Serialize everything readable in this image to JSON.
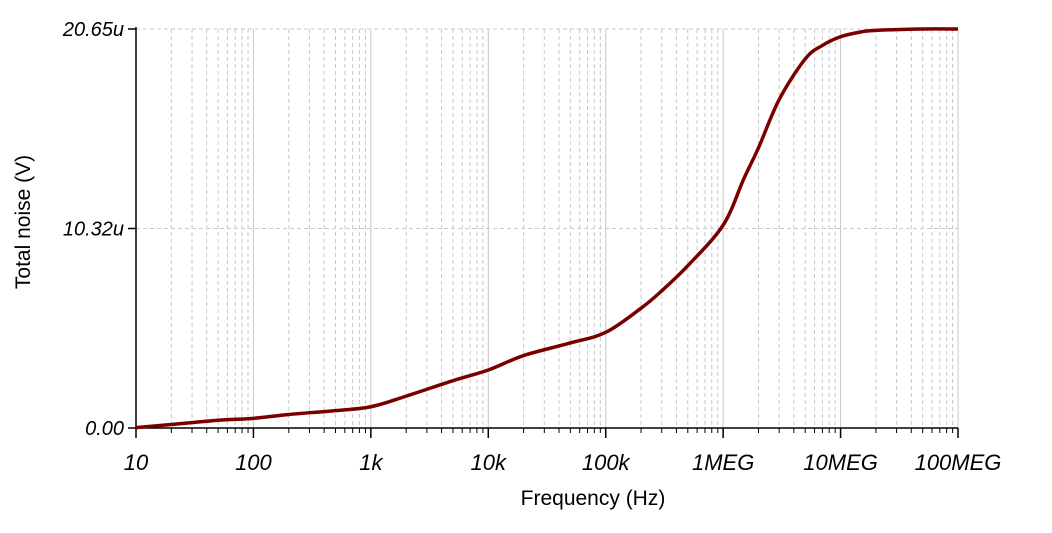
{
  "chart_data": {
    "type": "line",
    "title": "",
    "xlabel": "Frequency (Hz)",
    "ylabel": "Total noise (V)",
    "x_scale": "log",
    "xlim": [
      10,
      100000000
    ],
    "ylim": [
      0,
      20.65
    ],
    "y_unit": "uV",
    "grid": true,
    "x_tick_labels": [
      "10",
      "100",
      "1k",
      "10k",
      "100k",
      "1MEG",
      "10MEG",
      "100MEG"
    ],
    "y_tick_labels": [
      "0.00",
      "10.32u",
      "20.65u"
    ],
    "colors": {
      "series": "#7a0000",
      "grid": "#c8c8c8",
      "axis": "#000000"
    },
    "series": [
      {
        "x": [
          10,
          20,
          50,
          100,
          200,
          500,
          1000,
          2000,
          5000,
          10000,
          20000,
          50000,
          100000,
          200000,
          300000,
          500000,
          1000000,
          1500000,
          2000000,
          3000000,
          5000000,
          7000000,
          10000000,
          15000000,
          20000000,
          50000000,
          100000000
        ],
        "y": [
          0.02,
          0.18,
          0.4,
          0.5,
          0.7,
          0.9,
          1.1,
          1.65,
          2.45,
          3.0,
          3.75,
          4.4,
          4.95,
          6.2,
          7.1,
          8.4,
          10.5,
          12.9,
          14.5,
          17.0,
          19.1,
          19.8,
          20.25,
          20.5,
          20.58,
          20.65,
          20.65
        ]
      }
    ]
  }
}
